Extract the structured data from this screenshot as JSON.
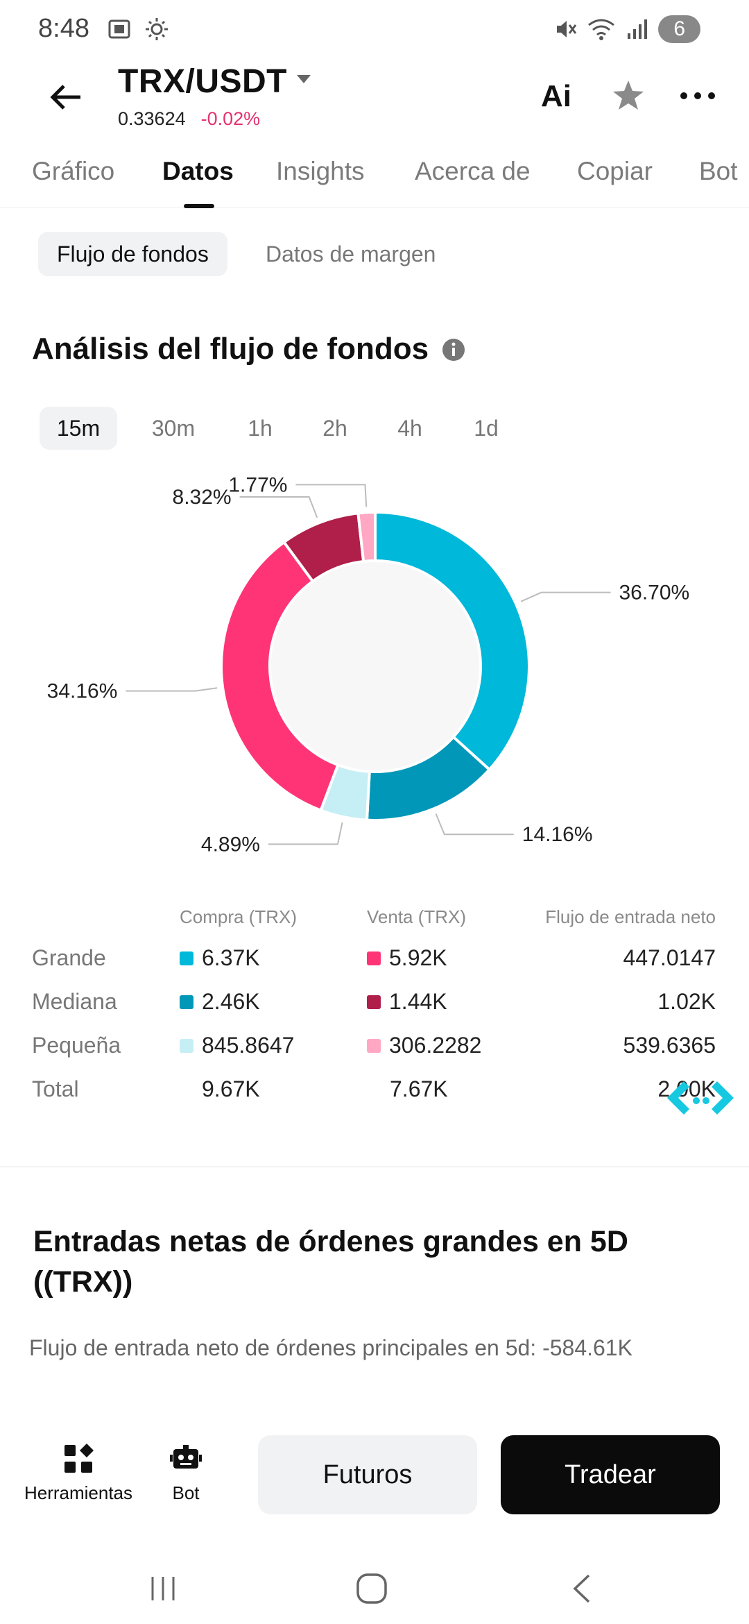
{
  "status": {
    "time": "8:48",
    "battery": "6"
  },
  "header": {
    "pair": "TRX/USDT",
    "price": "0.33624",
    "change": "-0.02%",
    "ai_label": "Ai"
  },
  "tabs": [
    "Gráfico",
    "Datos",
    "Insights",
    "Acerca de",
    "Copiar",
    "Bot"
  ],
  "active_tab": "Datos",
  "subtabs": [
    "Flujo de fondos",
    "Datos de margen"
  ],
  "section_title": "Análisis del flujo de fondos",
  "timeframes": [
    "15m",
    "30m",
    "1h",
    "2h",
    "4h",
    "1d"
  ],
  "active_timeframe": "15m",
  "chart_data": {
    "type": "pie",
    "donut": true,
    "slices": [
      {
        "label": "36.70%",
        "value": 36.7,
        "color": "#00b8d9"
      },
      {
        "label": "14.16%",
        "value": 14.16,
        "color": "#0097b8"
      },
      {
        "label": "4.89%",
        "value": 4.89,
        "color": "#c6eef5"
      },
      {
        "label": "34.16%",
        "value": 34.16,
        "color": "#ff3477"
      },
      {
        "label": "8.32%",
        "value": 8.32,
        "color": "#b01e4a"
      },
      {
        "label": "1.77%",
        "value": 1.77,
        "color": "#ffa7c3"
      }
    ]
  },
  "table": {
    "headers": {
      "buy": "Compra (TRX)",
      "sell": "Venta (TRX)",
      "net": "Flujo de entrada neto"
    },
    "rows": [
      {
        "label": "Grande",
        "buy": "6.37K",
        "sell": "5.92K",
        "net": "447.0147",
        "buy_color": "#00b8d9",
        "sell_color": "#ff3477"
      },
      {
        "label": "Mediana",
        "buy": "2.46K",
        "sell": "1.44K",
        "net": "1.02K",
        "buy_color": "#0097b8",
        "sell_color": "#b01e4a"
      },
      {
        "label": "Pequeña",
        "buy": "845.8647",
        "sell": "306.2282",
        "net": "539.6365",
        "buy_color": "#c6eef5",
        "sell_color": "#ffa7c3"
      },
      {
        "label": "Total",
        "buy": "9.67K",
        "sell": "7.67K",
        "net": "2.00K"
      }
    ]
  },
  "section2": {
    "title": "Entradas netas de órdenes grandes en 5D ((TRX))",
    "subtitle": "Flujo de entrada neto de órdenes principales en 5d: -584.61K"
  },
  "bottom": {
    "tools_label": "Herramientas",
    "bot_label": "Bot",
    "futures_label": "Futuros",
    "trade_label": "Tradear"
  }
}
